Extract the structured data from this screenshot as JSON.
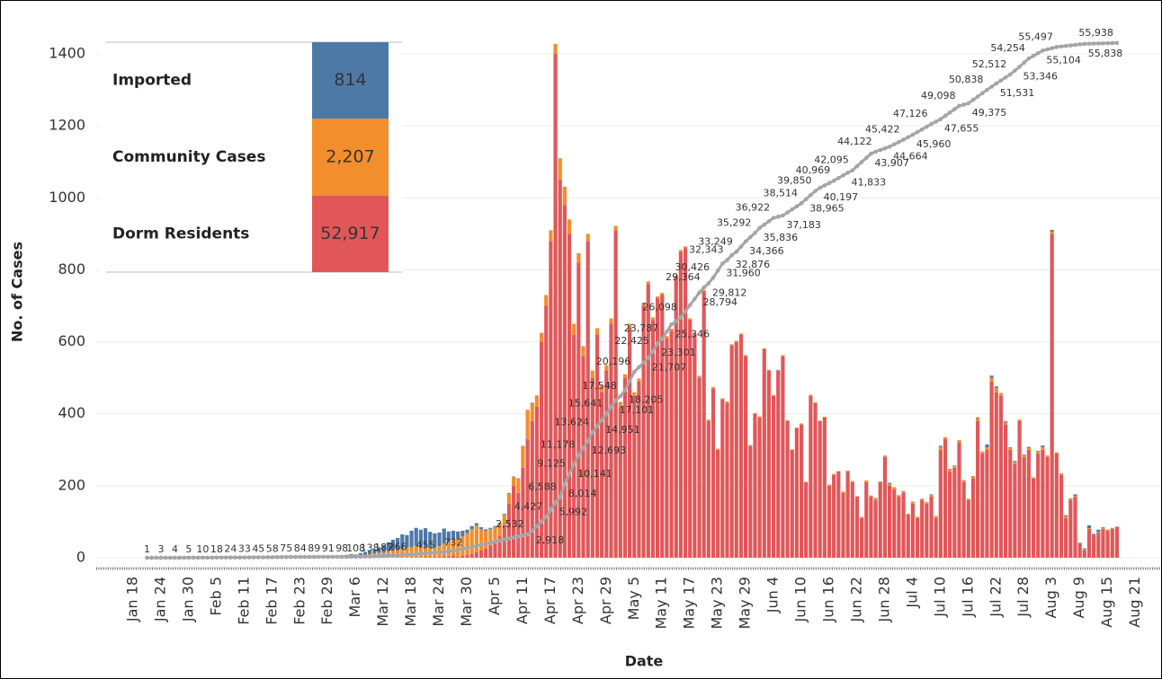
{
  "chart_data": {
    "type": "bar",
    "x_label": "Date",
    "y_label": "No. of Cases",
    "ylim": [
      -30,
      1450
    ],
    "yticks": [
      0,
      200,
      400,
      600,
      800,
      1000,
      1200,
      1400
    ],
    "y2lim": [
      -1173,
      56700
    ],
    "grid": true,
    "legend": "top-left",
    "stacked": true,
    "categories": [
      "Jan 18",
      null,
      null,
      null,
      null,
      null,
      "Jan 24",
      null,
      null,
      null,
      null,
      null,
      "Jan 30",
      null,
      null,
      null,
      null,
      null,
      "Feb 5",
      null,
      null,
      null,
      null,
      null,
      "Feb 11",
      null,
      null,
      null,
      null,
      null,
      "Feb 17",
      null,
      null,
      null,
      null,
      null,
      "Feb 23",
      null,
      null,
      null,
      null,
      null,
      "Feb 29",
      null,
      null,
      null,
      null,
      null,
      "Mar 6",
      null,
      null,
      null,
      null,
      null,
      "Mar 12",
      null,
      null,
      null,
      null,
      null,
      "Mar 18",
      null,
      null,
      null,
      null,
      null,
      "Mar 24",
      null,
      null,
      null,
      null,
      null,
      "Mar 30",
      null,
      null,
      null,
      null,
      null,
      "Apr 5",
      null,
      null,
      null,
      null,
      null,
      "Apr 11",
      null,
      null,
      null,
      null,
      null,
      "Apr 17",
      null,
      null,
      null,
      null,
      null,
      "Apr 23",
      null,
      null,
      null,
      null,
      null,
      "Apr 29",
      null,
      null,
      null,
      null,
      null,
      "May 5",
      null,
      null,
      null,
      null,
      null,
      "May 11",
      null,
      null,
      null,
      null,
      null,
      "May 17",
      null,
      null,
      null,
      null,
      null,
      "May 23",
      null,
      null,
      null,
      null,
      null,
      "May 29",
      null,
      null,
      null,
      null,
      null,
      "Jun 4",
      null,
      null,
      null,
      null,
      null,
      "Jun 10",
      null,
      null,
      null,
      null,
      null,
      "Jun 16",
      null,
      null,
      null,
      null,
      null,
      "Jun 22",
      null,
      null,
      null,
      null,
      null,
      "Jun 28",
      null,
      null,
      null,
      null,
      null,
      "Jul 4",
      null,
      null,
      null,
      null,
      null,
      "Jul 10",
      null,
      null,
      null,
      null,
      null,
      "Jul 16",
      null,
      null,
      null,
      null,
      null,
      "Jul 22",
      null,
      null,
      null,
      null,
      null,
      "Jul 28",
      null,
      null,
      null,
      null,
      null,
      "Aug 3",
      null,
      null,
      null,
      null,
      null,
      "Aug 9",
      null,
      null,
      null,
      null,
      null,
      "Aug 15",
      null,
      null,
      null,
      null,
      null,
      "Aug 21"
    ],
    "series": [
      {
        "name": "Imported",
        "color": "#4e79a7",
        "total": {
          "value": 814,
          "label": "814"
        },
        "values": [
          0,
          0,
          0,
          0,
          0,
          1,
          2,
          1,
          0,
          1,
          2,
          1,
          0,
          0,
          1,
          0,
          1,
          0,
          0,
          1,
          0,
          0,
          1,
          0,
          0,
          0,
          0,
          1,
          0,
          0,
          0,
          1,
          0,
          0,
          0,
          1,
          0,
          0,
          1,
          0,
          0,
          1,
          0,
          1,
          2,
          2,
          3,
          4,
          3,
          5,
          8,
          10,
          12,
          15,
          20,
          25,
          30,
          33,
          40,
          35,
          45,
          50,
          48,
          52,
          45,
          40,
          38,
          42,
          30,
          25,
          20,
          15,
          10,
          8,
          6,
          5,
          4,
          3,
          3,
          2,
          2,
          2,
          1,
          1,
          1,
          1,
          1,
          1,
          0,
          0,
          0,
          0,
          0,
          1,
          0,
          0,
          1,
          0,
          0,
          0,
          0,
          1,
          0,
          0,
          0,
          1,
          0,
          0,
          0,
          0,
          1,
          0,
          0,
          0,
          0,
          0,
          1,
          0,
          0,
          0,
          0,
          0,
          1,
          0,
          0,
          0,
          0,
          0,
          1,
          0,
          0,
          0,
          0,
          1,
          0,
          0,
          0,
          0,
          0,
          1,
          0,
          0,
          0,
          0,
          1,
          0,
          0,
          0,
          0,
          0,
          1,
          0,
          0,
          0,
          0,
          0,
          0,
          1,
          0,
          0,
          2,
          0,
          1,
          3,
          0,
          0,
          2,
          0,
          1,
          0,
          1,
          0,
          2,
          0,
          3,
          0,
          1,
          2,
          0,
          1,
          0,
          1,
          2,
          0,
          8,
          6,
          4,
          0,
          3,
          2,
          2,
          0,
          1,
          3,
          0,
          2,
          4,
          0,
          5,
          0,
          1,
          3,
          2,
          4,
          0,
          3,
          8,
          5,
          6,
          2,
          1,
          0,
          0,
          null,
          null,
          null,
          null
        ]
      },
      {
        "name": "Community Cases",
        "color": "#f28e2b",
        "total": {
          "value": 2207,
          "label": "2,207"
        },
        "values": [
          0,
          0,
          0,
          0,
          0,
          0,
          0,
          0,
          1,
          1,
          2,
          1,
          3,
          0,
          2,
          1,
          2,
          1,
          0,
          1,
          1,
          0,
          2,
          1,
          1,
          0,
          2,
          1,
          1,
          3,
          2,
          3,
          1,
          2,
          0,
          1,
          1,
          2,
          1,
          0,
          2,
          2,
          3,
          3,
          4,
          5,
          5,
          6,
          6,
          8,
          8,
          10,
          12,
          14,
          15,
          18,
          20,
          22,
          25,
          28,
          30,
          32,
          30,
          28,
          26,
          25,
          30,
          35,
          40,
          45,
          50,
          55,
          60,
          70,
          75,
          60,
          50,
          45,
          40,
          35,
          30,
          28,
          25,
          40,
          60,
          80,
          50,
          30,
          25,
          30,
          30,
          28,
          60,
          50,
          40,
          30,
          25,
          28,
          20,
          20,
          18,
          18,
          15,
          15,
          12,
          12,
          10,
          10,
          10,
          8,
          8,
          8,
          8,
          6,
          6,
          6,
          5,
          5,
          5,
          5,
          5,
          4,
          4,
          4,
          4,
          4,
          3,
          3,
          3,
          3,
          3,
          3,
          3,
          2,
          2,
          3,
          2,
          2,
          2,
          1,
          3,
          2,
          1,
          2,
          2,
          1,
          3,
          2,
          1,
          2,
          2,
          3,
          1,
          4,
          2,
          3,
          1,
          2,
          5,
          3,
          4,
          2,
          3,
          5,
          6,
          4,
          3,
          2,
          5,
          4,
          3,
          5,
          4,
          6,
          8,
          5,
          6,
          4,
          7,
          5,
          4,
          6,
          8,
          5,
          7,
          10,
          12,
          8,
          6,
          5,
          7,
          4,
          6,
          5,
          3,
          5,
          8,
          4,
          6,
          3,
          4,
          5,
          3,
          2,
          2,
          3,
          2,
          1,
          2,
          3,
          2,
          3,
          2,
          null,
          null,
          null,
          null
        ]
      },
      {
        "name": "Dorm Residents",
        "color": "#e15759",
        "total": {
          "value": 52917,
          "label": "52,917"
        },
        "values": [
          0,
          0,
          0,
          0,
          0,
          0,
          0,
          0,
          0,
          0,
          0,
          0,
          0,
          0,
          0,
          0,
          0,
          0,
          0,
          0,
          0,
          0,
          0,
          0,
          0,
          0,
          0,
          0,
          0,
          0,
          0,
          0,
          0,
          0,
          0,
          0,
          0,
          0,
          0,
          0,
          0,
          0,
          0,
          0,
          0,
          0,
          0,
          0,
          0,
          0,
          0,
          0,
          0,
          0,
          0,
          0,
          0,
          0,
          0,
          0,
          0,
          1,
          0,
          2,
          1,
          3,
          2,
          4,
          3,
          5,
          3,
          5,
          8,
          10,
          15,
          20,
          25,
          35,
          45,
          60,
          90,
          150,
          200,
          180,
          250,
          330,
          380,
          420,
          600,
          700,
          880,
          1400,
          1050,
          980,
          900,
          620,
          820,
          560,
          880,
          500,
          620,
          460,
          520,
          650,
          910,
          420,
          500,
          640,
          450,
          490,
          700,
          760,
          660,
          720,
          730,
          610,
          630,
          780,
          850,
          860,
          660,
          620,
          500,
          740,
          380,
          470,
          300,
          440,
          430,
          590,
          600,
          620,
          560,
          310,
          400,
          390,
          580,
          520,
          450,
          520,
          560,
          380,
          300,
          360,
          370,
          210,
          450,
          430,
          380,
          390,
          200,
          230,
          240,
          180,
          240,
          210,
          170,
          110,
          210,
          170,
          160,
          210,
          280,
          200,
          190,
          170,
          180,
          120,
          150,
          110,
          160,
          150,
          170,
          110,
          300,
          330,
          240,
          250,
          320,
          210,
          160,
          220,
          380,
          290,
          300,
          490,
          460,
          450,
          370,
          300,
          260,
          380,
          280,
          300,
          220,
          290,
          300,
          280,
          900,
          290,
          230,
          110,
          160,
          170,
          40,
          20,
          80,
          60,
          70,
          80,
          75,
          80,
          85,
          null,
          null,
          null,
          null
        ]
      },
      {
        "type": "line",
        "axis": "y2",
        "color": "#a5a5a5",
        "values": [
          null,
          null,
          null,
          1,
          2,
          2,
          3,
          3,
          4,
          4,
          4,
          5,
          5,
          7,
          8,
          10,
          13,
          15,
          18,
          20,
          22,
          24,
          27,
          30,
          33,
          37,
          41,
          45,
          49,
          54,
          58,
          64,
          69,
          75,
          78,
          81,
          84,
          86,
          87,
          89,
          90,
          90,
          91,
          93,
          96,
          98,
          101,
          105,
          108,
          118,
          128,
          138,
          154,
          171,
          187,
          213,
          240,
          266,
          298,
          329,
          361,
          392,
          424,
          455,
          501,
          547,
          594,
          640,
          686,
          732,
          845,
          957,
          1070,
          1182,
          1295,
          1407,
          1520,
          1632,
          1745,
          1857,
          1970,
          2082,
          2195,
          2307,
          2420,
          2532,
          2918,
          3421,
          3924,
          4427,
          5210,
          5992,
          6588,
          8014,
          9125,
          10141,
          11178,
          11936,
          12693,
          13624,
          14288,
          14951,
          15641,
          16371,
          17101,
          17548,
          18205,
          19201,
          20196,
          20700,
          21204,
          21707,
          22425,
          23301,
          23787,
          24567,
          25346,
          25722,
          26098,
          26772,
          27446,
          28120,
          28794,
          29364,
          29812,
          30426,
          31193,
          31960,
          32343,
          32876,
          33249,
          33808,
          34366,
          34829,
          35292,
          35836,
          36198,
          36560,
          36922,
          37053,
          37183,
          37516,
          37849,
          38181,
          38514,
          38965,
          39408,
          39850,
          40197,
          40454,
          40712,
          40969,
          41257,
          41545,
          41833,
          42095,
          42548,
          43001,
          43454,
          43907,
          44122,
          44303,
          44483,
          44664,
          44917,
          45169,
          45422,
          45691,
          45960,
          46252,
          46543,
          46835,
          47126,
          47391,
          47655,
          48016,
          48377,
          48737,
          49098,
          49237,
          49375,
          49741,
          50107,
          50472,
          50838,
          51185,
          51531,
          51858,
          52185,
          52512,
          52929,
          53346,
          53800,
          54254,
          54537,
          54821,
          55104,
          55235,
          55366,
          55497,
          55554,
          55611,
          55668,
          55724,
          55781,
          55838,
          55852,
          55866,
          55881,
          55895,
          55909,
          55924,
          55938,
          null,
          null,
          null,
          null
        ],
        "value_labels": [
          null,
          null,
          null,
          "1",
          null,
          null,
          "3",
          null,
          null,
          "4",
          null,
          null,
          "5",
          null,
          null,
          "10",
          null,
          null,
          "18",
          null,
          null,
          "24",
          null,
          null,
          "33",
          null,
          null,
          "45",
          null,
          null,
          "58",
          null,
          null,
          "75",
          null,
          null,
          "84",
          null,
          null,
          "89",
          null,
          null,
          "91",
          null,
          null,
          "98",
          null,
          null,
          "108",
          null,
          null,
          "138",
          null,
          null,
          "187",
          null,
          null,
          "266",
          null,
          null,
          null,
          null,
          null,
          "455",
          null,
          null,
          null,
          null,
          null,
          "732",
          null,
          null,
          null,
          null,
          null,
          null,
          null,
          null,
          null,
          null,
          null,
          null,
          null,
          null,
          null,
          "2,532",
          "2,918",
          null,
          null,
          "4,427",
          null,
          "5,992",
          "6,588",
          "8,014",
          "9,125",
          "10,141",
          "11,178",
          null,
          "12,693",
          "13,624",
          null,
          "14,951",
          "15,641",
          null,
          "17,101",
          "17,548",
          "18,205",
          null,
          "20,196",
          null,
          null,
          "21,707",
          "22,425",
          "23,301",
          "23,787",
          null,
          "25,346",
          null,
          "26,098",
          null,
          null,
          null,
          "28,794",
          "29,364",
          "29,812",
          "30,426",
          null,
          "31,960",
          "32,343",
          "32,876",
          "33,249",
          null,
          "34,366",
          null,
          "35,292",
          "35,836",
          null,
          null,
          "36,922",
          null,
          "37,183",
          null,
          null,
          null,
          "38,514",
          "38,965",
          null,
          "39,850",
          "40,197",
          null,
          null,
          "40,969",
          null,
          null,
          "41,833",
          "42,095",
          null,
          null,
          null,
          "43,907",
          "44,122",
          null,
          null,
          "44,664",
          null,
          null,
          "45,422",
          null,
          "45,960",
          null,
          null,
          null,
          "47,126",
          null,
          "47,655",
          null,
          null,
          null,
          "49,098",
          null,
          "49,375",
          null,
          null,
          null,
          "50,838",
          null,
          "51,531",
          null,
          null,
          "52,512",
          null,
          "53,346",
          null,
          "54,254",
          null,
          null,
          "55,104",
          null,
          null,
          "55,497",
          null,
          null,
          null,
          null,
          null,
          "55,838",
          null,
          null,
          null,
          null,
          null,
          null,
          "55,938",
          null,
          null,
          null,
          null
        ]
      }
    ]
  }
}
